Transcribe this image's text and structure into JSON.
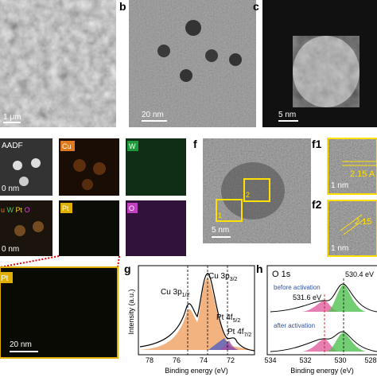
{
  "a": {
    "scale_bar": "1 μm"
  },
  "b": {
    "label": "b",
    "scale_bar": "20 nm"
  },
  "c": {
    "label": "c",
    "scale_bar": "5 nm"
  },
  "d": {
    "haadf": {
      "label": "AADF",
      "scale_bar": "0 nm"
    },
    "cu": {
      "label": "Cu"
    },
    "w": {
      "label": "W"
    },
    "overlay": {
      "parts": [
        "u",
        "W",
        "Pt",
        "O"
      ],
      "scale_bar": "0 nm"
    },
    "pt": {
      "label": "Pt"
    },
    "o": {
      "label": "O"
    }
  },
  "e": {
    "label": "Pt",
    "scale_bar": "20 nm"
  },
  "f": {
    "label": "f",
    "scale_bar": "5 nm",
    "boxes": [
      "1",
      "2"
    ]
  },
  "f1": {
    "label": "f1",
    "spacing": "2.15 A",
    "scale_bar": "1 nm"
  },
  "f2": {
    "label": "f2",
    "spacing": "2.15",
    "scale_bar": "1 nm"
  },
  "g": {
    "label": "g",
    "y_label": "Intensity (a.u.)",
    "x_label": "Binding energy (eV)",
    "x_ticks": [
      "78",
      "76",
      "74",
      "72"
    ],
    "peaks": [
      {
        "name": "Cu 3p",
        "sub": "1/2"
      },
      {
        "name": "Cu 3p",
        "sub": "3/2"
      },
      {
        "name": "Pt 4f",
        "sub": "5/2"
      },
      {
        "name": "Pt 4f",
        "sub": "7/2"
      }
    ]
  },
  "h": {
    "label": "h",
    "title": "O 1s",
    "before": "before activation",
    "after": "after activation",
    "peaks": [
      "530.4 eV",
      "531.6 eV"
    ],
    "x_ticks": [
      "534",
      "532",
      "530",
      "528"
    ],
    "x_label": "Binding energy (eV)"
  }
}
